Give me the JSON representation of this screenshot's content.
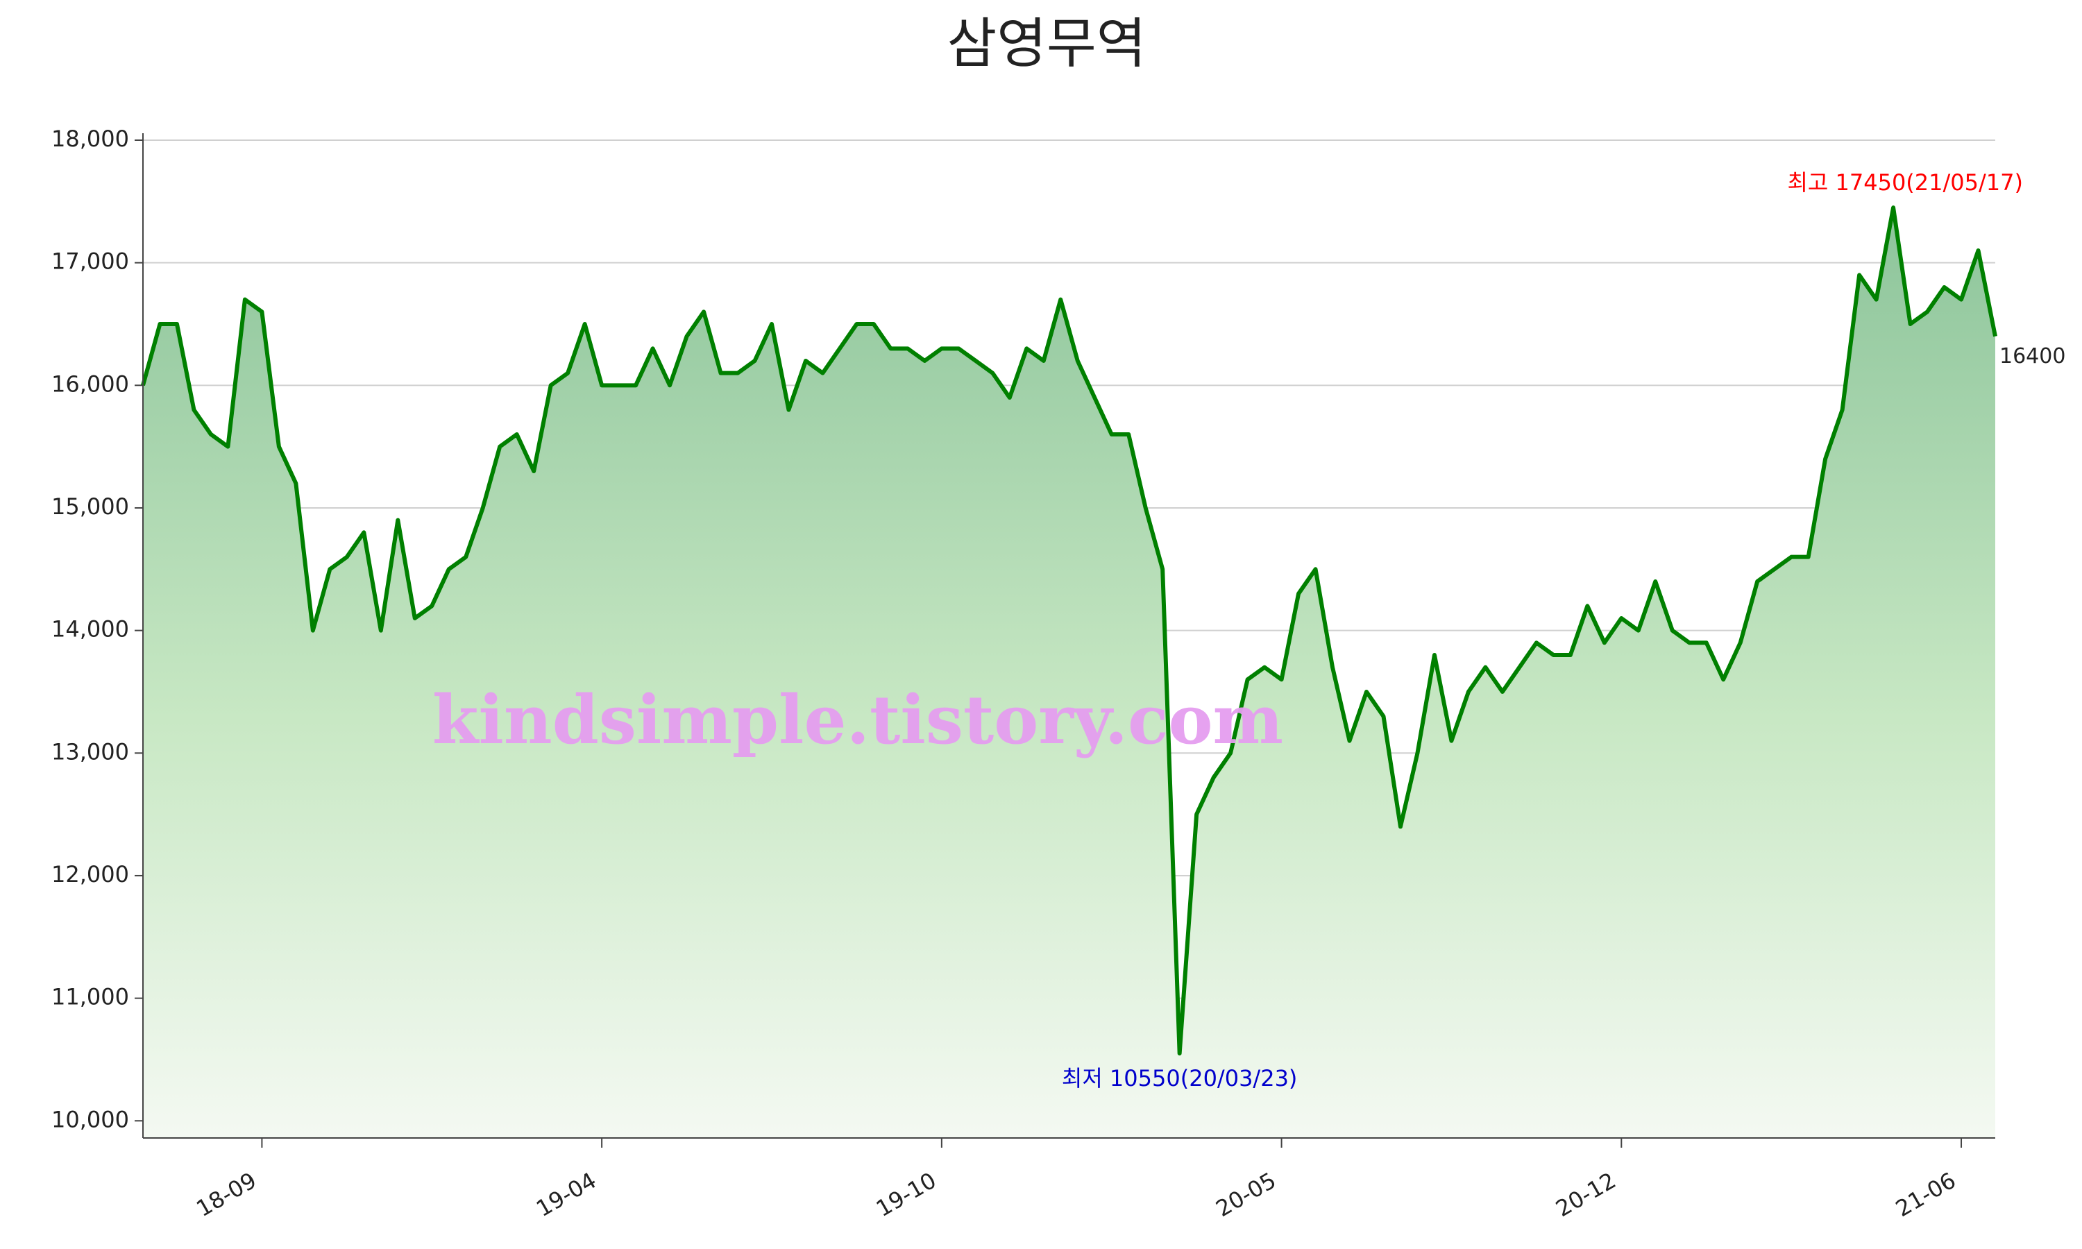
{
  "chart_data": {
    "type": "area-line",
    "title": "삼영무역",
    "watermark": "kindsimple.tistory.com",
    "categories": [
      null,
      null,
      null,
      null,
      null,
      null,
      null,
      "18-09",
      null,
      null,
      null,
      null,
      null,
      null,
      null,
      null,
      null,
      null,
      null,
      null,
      null,
      null,
      null,
      null,
      null,
      null,
      null,
      "19-04",
      null,
      null,
      null,
      null,
      null,
      null,
      null,
      null,
      null,
      null,
      null,
      null,
      null,
      null,
      null,
      null,
      null,
      null,
      null,
      "19-10",
      null,
      null,
      null,
      null,
      null,
      null,
      null,
      null,
      null,
      null,
      null,
      null,
      null,
      null,
      null,
      null,
      null,
      null,
      null,
      "20-05",
      null,
      null,
      null,
      null,
      null,
      null,
      null,
      null,
      null,
      null,
      null,
      null,
      null,
      null,
      null,
      null,
      null,
      null,
      null,
      "20-12",
      null,
      null,
      null,
      null,
      null,
      null,
      null,
      null,
      null,
      null,
      null,
      null,
      null,
      null,
      null,
      null,
      null,
      null,
      null,
      "21-06",
      null,
      null
    ],
    "values": [
      16000,
      16500,
      16500,
      15800,
      15600,
      15500,
      16700,
      16600,
      15500,
      15200,
      14000,
      14500,
      14600,
      14800,
      14000,
      14900,
      14100,
      14200,
      14500,
      14600,
      15000,
      15500,
      15600,
      15300,
      16000,
      16100,
      16500,
      16000,
      16000,
      16000,
      16300,
      16000,
      16400,
      16600,
      16100,
      16100,
      16200,
      16500,
      15800,
      16200,
      16100,
      16300,
      16500,
      16500,
      16300,
      16300,
      16200,
      16300,
      16300,
      16200,
      16100,
      15900,
      16300,
      16200,
      16700,
      16200,
      15900,
      15600,
      15600,
      15000,
      14500,
      10550,
      12500,
      12800,
      13000,
      13600,
      13700,
      13600,
      14300,
      14500,
      13700,
      13100,
      13500,
      13300,
      12400,
      13000,
      13800,
      13100,
      13500,
      13700,
      13500,
      13700,
      13900,
      13800,
      13800,
      14200,
      13900,
      14100,
      14000,
      14400,
      14000,
      13900,
      13900,
      13600,
      13900,
      14400,
      14500,
      14600,
      14600,
      15400,
      15800,
      16900,
      16700,
      17450,
      16500,
      16600,
      16800,
      16700,
      17100,
      16400
    ],
    "value_labels": [
      null,
      null,
      null,
      null,
      null,
      null,
      null,
      null,
      null,
      null,
      null,
      null,
      null,
      null,
      null,
      null,
      null,
      null,
      null,
      null,
      null,
      null,
      null,
      null,
      null,
      null,
      null,
      null,
      null,
      null,
      null,
      null,
      null,
      null,
      null,
      null,
      null,
      null,
      null,
      null,
      null,
      null,
      null,
      null,
      null,
      null,
      null,
      null,
      null,
      null,
      null,
      null,
      null,
      null,
      null,
      null,
      null,
      null,
      null,
      null,
      null,
      "최저 10550(20/03/23)",
      null,
      null,
      null,
      null,
      null,
      null,
      null,
      null,
      null,
      null,
      null,
      null,
      null,
      null,
      null,
      null,
      null,
      null,
      null,
      null,
      null,
      null,
      null,
      null,
      null,
      null,
      null,
      null,
      null,
      null,
      null,
      null,
      null,
      null,
      null,
      null,
      null,
      null,
      null,
      null,
      null,
      "최고 17450(21/05/17)",
      null,
      null,
      null,
      null,
      null,
      "16400"
    ],
    "color": "#008000",
    "high_label_color": "#ff0000",
    "low_label_color": "#0000cc",
    "ylim": [
      9860,
      18000
    ],
    "yticks": [
      {
        "value": 10000,
        "label": "10,000"
      },
      {
        "value": 11000,
        "label": "11,000"
      },
      {
        "value": 12000,
        "label": "12,000"
      },
      {
        "value": 13000,
        "label": "13,000"
      },
      {
        "value": 14000,
        "label": "14,000"
      },
      {
        "value": 15000,
        "label": "15,000"
      },
      {
        "value": 16000,
        "label": "16,000"
      },
      {
        "value": 17000,
        "label": "17,000"
      },
      {
        "value": 18000,
        "label": "18,000"
      }
    ],
    "grid": true
  }
}
